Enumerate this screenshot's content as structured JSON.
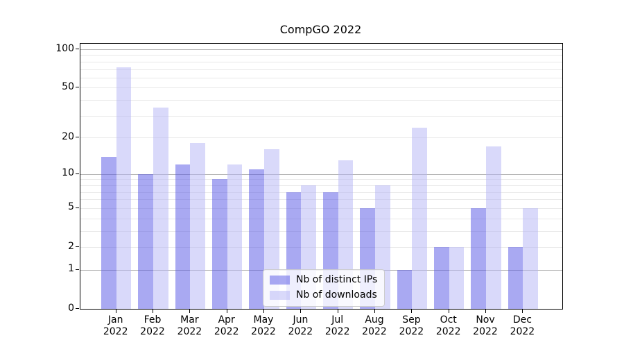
{
  "title": "CompGO 2022",
  "chart_data": {
    "type": "bar",
    "title": "CompGO 2022",
    "year_label": "2022",
    "months": [
      "Jan",
      "Feb",
      "Mar",
      "Apr",
      "May",
      "Jun",
      "Jul",
      "Aug",
      "Sep",
      "Oct",
      "Nov",
      "Dec"
    ],
    "categories": [
      "Jan 2022",
      "Feb 2022",
      "Mar 2022",
      "Apr 2022",
      "May 2022",
      "Jun 2022",
      "Jul 2022",
      "Aug 2022",
      "Sep 2022",
      "Oct 2022",
      "Nov 2022",
      "Dec 2022"
    ],
    "series": [
      {
        "name": "Nb of distinct IPs",
        "color": "rgba(83,83,229,0.5)",
        "values": [
          14,
          10,
          12,
          9,
          11,
          7,
          7,
          5,
          1,
          2,
          5,
          2
        ]
      },
      {
        "name": "Nb of downloads",
        "color": "rgba(179,179,245,0.5)",
        "values": [
          72,
          35,
          18,
          12,
          16,
          8,
          13,
          8,
          24,
          2,
          17,
          5
        ]
      }
    ],
    "xlabel": "",
    "ylabel": "",
    "yscale": "log1p",
    "ylim": [
      0,
      110
    ],
    "y_ticks": [
      {
        "v": 0,
        "label": "0"
      },
      {
        "v": 1,
        "label": "1"
      },
      {
        "v": 2,
        "label": "2"
      },
      {
        "v": 5,
        "label": "5"
      },
      {
        "v": 10,
        "label": "10"
      },
      {
        "v": 20,
        "label": "20"
      },
      {
        "v": 50,
        "label": "50"
      },
      {
        "v": 100,
        "label": "100"
      }
    ],
    "grid": {
      "major_values": [
        1,
        10,
        100
      ],
      "minor_values": [
        2,
        3,
        4,
        5,
        6,
        7,
        8,
        9,
        20,
        30,
        40,
        50,
        60,
        70,
        80,
        90
      ],
      "major_color": "#b4b4b4",
      "minor_color": "#e9e9e9"
    },
    "legend_position": "lower center"
  }
}
